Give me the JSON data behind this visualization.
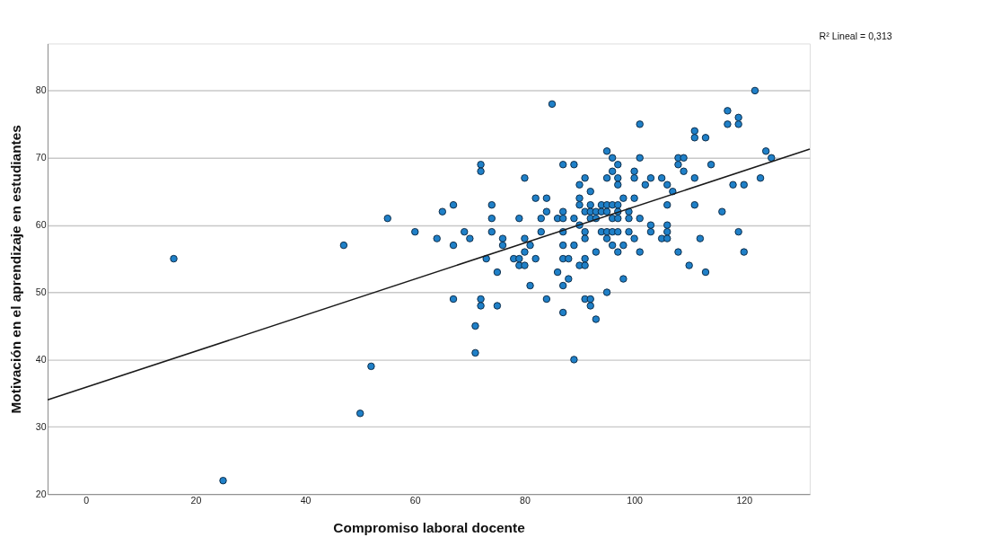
{
  "chart_data": {
    "type": "scatter",
    "xlabel": "Compromiso laboral docente",
    "ylabel": "Motivación en el aprendizaje en estudiantes",
    "annotations": [
      "R² Lineal = 0,313"
    ],
    "xlim": [
      -7,
      132
    ],
    "ylim": [
      20,
      87
    ],
    "xticks": [
      0,
      20,
      40,
      60,
      80,
      100,
      120
    ],
    "yticks": [
      20,
      30,
      40,
      50,
      60,
      70,
      80
    ],
    "grid": "y",
    "marker": "circle",
    "series": [
      {
        "color": "#1f80c8",
        "x": [
          16,
          25,
          47,
          50,
          52,
          55,
          60,
          64,
          65,
          67,
          67,
          67,
          69,
          70,
          72,
          72,
          72,
          72,
          71,
          71,
          73,
          74,
          74,
          74,
          75,
          75,
          76,
          76,
          78,
          79,
          79,
          79,
          80,
          80,
          80,
          80,
          81,
          81,
          82,
          82,
          83,
          83,
          84,
          84,
          84,
          85,
          86,
          86,
          87,
          87,
          87,
          87,
          87,
          87,
          87,
          87,
          88,
          88,
          89,
          89,
          89,
          89,
          90,
          90,
          90,
          90,
          90,
          91,
          91,
          91,
          91,
          91,
          91,
          91,
          92,
          92,
          92,
          92,
          92,
          92,
          93,
          93,
          93,
          93,
          94,
          94,
          94,
          95,
          95,
          95,
          95,
          95,
          95,
          95,
          96,
          96,
          96,
          96,
          96,
          96,
          97,
          97,
          97,
          97,
          97,
          97,
          97,
          97,
          98,
          98,
          98,
          99,
          99,
          99,
          100,
          100,
          100,
          100,
          101,
          101,
          101,
          101,
          102,
          103,
          103,
          103,
          105,
          105,
          106,
          106,
          106,
          106,
          106,
          107,
          108,
          108,
          108,
          109,
          109,
          110,
          111,
          111,
          111,
          111,
          112,
          113,
          113,
          114,
          116,
          117,
          117,
          118,
          119,
          119,
          119,
          120,
          120,
          122,
          123,
          124,
          125
        ],
        "values": [
          55,
          22,
          57,
          32,
          39,
          61,
          59,
          58,
          62,
          63,
          57,
          49,
          59,
          58,
          69,
          68,
          49,
          48,
          45,
          41,
          55,
          63,
          61,
          59,
          53,
          48,
          58,
          57,
          55,
          61,
          55,
          54,
          67,
          58,
          56,
          54,
          57,
          51,
          64,
          55,
          61,
          59,
          64,
          62,
          49,
          78,
          61,
          53,
          69,
          62,
          61,
          59,
          57,
          55,
          51,
          47,
          55,
          52,
          69,
          61,
          57,
          40,
          66,
          64,
          63,
          60,
          54,
          67,
          62,
          59,
          58,
          55,
          54,
          49,
          65,
          63,
          62,
          61,
          49,
          48,
          62,
          61,
          56,
          46,
          63,
          62,
          59,
          71,
          67,
          63,
          62,
          59,
          58,
          50,
          70,
          68,
          63,
          61,
          59,
          57,
          69,
          67,
          66,
          63,
          62,
          61,
          59,
          56,
          64,
          57,
          52,
          62,
          61,
          59,
          68,
          67,
          64,
          58,
          75,
          70,
          61,
          56,
          66,
          67,
          60,
          59,
          67,
          58,
          66,
          63,
          60,
          59,
          58,
          65,
          70,
          69,
          56,
          70,
          68,
          54,
          74,
          73,
          67,
          63,
          58,
          73,
          53,
          69,
          62,
          77,
          75,
          66,
          76,
          75,
          59,
          66,
          56,
          80,
          67,
          71,
          70
        ]
      },
      {
        "type": "line",
        "marker": "none",
        "line_style": "solid",
        "color": "#1a1a1a",
        "x": [
          -7,
          132
        ],
        "values": [
          34.0,
          71.3
        ]
      }
    ]
  }
}
